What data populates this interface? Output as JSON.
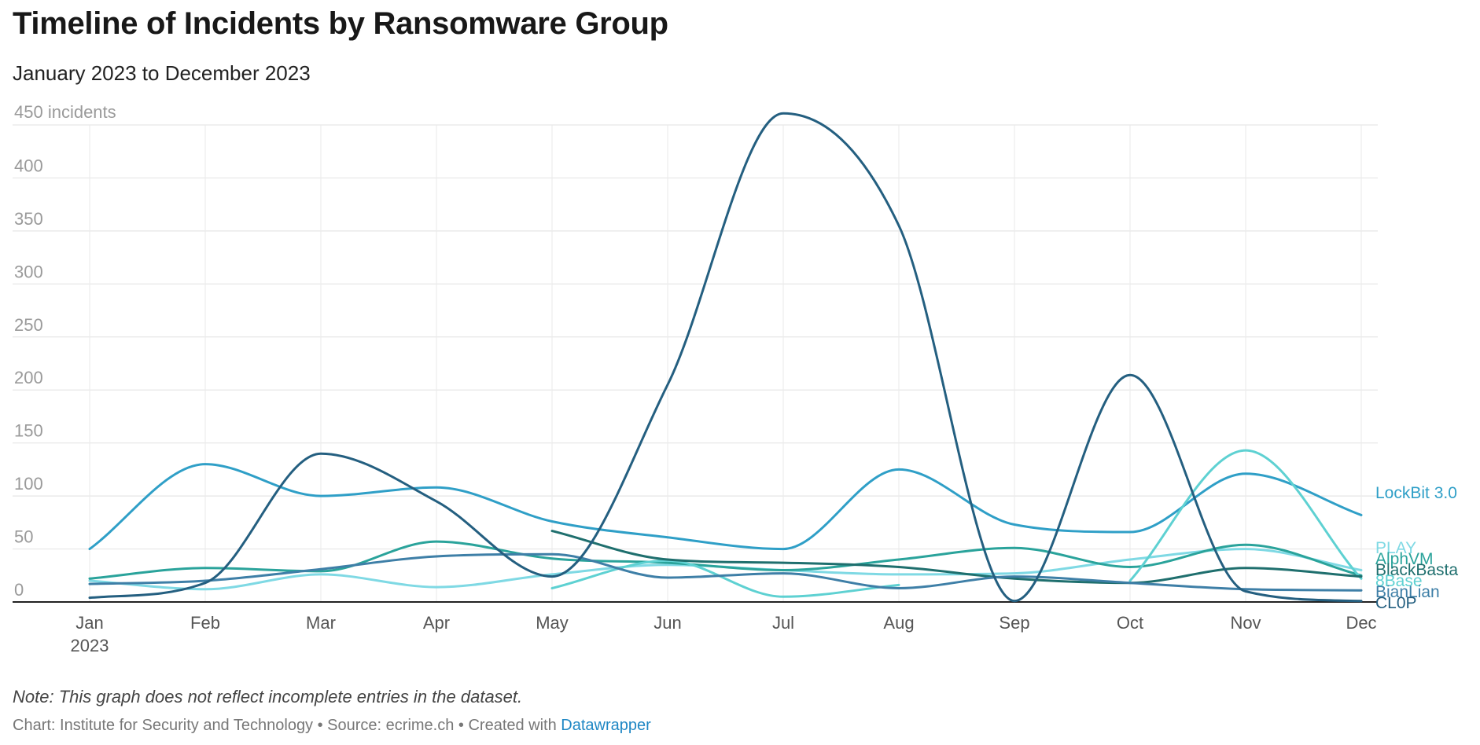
{
  "chart_data": {
    "type": "line",
    "title": "Timeline of Incidents by Ransomware Group",
    "subtitle": "January 2023 to December 2023",
    "x": [
      "Jan",
      "Feb",
      "Mar",
      "Apr",
      "May",
      "Jun",
      "Jul",
      "Aug",
      "Sep",
      "Oct",
      "Nov",
      "Dec"
    ],
    "x_year_label": "2023",
    "y_unit_label": "450 incidents",
    "yticks": [
      0,
      50,
      100,
      150,
      200,
      250,
      300,
      350,
      400
    ],
    "ylim": [
      0,
      450
    ],
    "grid": true,
    "legend": "direct labels at right end of lines",
    "series": [
      {
        "name": "LockBit 3.0",
        "color": "#2f9fc7",
        "values": [
          50,
          130,
          100,
          108,
          76,
          61,
          50,
          125,
          73,
          66,
          121,
          82
        ]
      },
      {
        "name": "PLAY",
        "color": "#7fd9e4",
        "values": [
          20,
          12,
          26,
          14,
          26,
          35,
          30,
          26,
          27,
          40,
          50,
          30
        ]
      },
      {
        "name": "AlphVM",
        "color": "#2aa39b",
        "values": [
          22,
          32,
          29,
          57,
          41,
          37,
          30,
          40,
          51,
          33,
          54,
          25
        ]
      },
      {
        "name": "8Base",
        "color": "#5ed1d2",
        "values": [
          null,
          null,
          null,
          null,
          13,
          39,
          5,
          16,
          null,
          20,
          143,
          22
        ]
      },
      {
        "name": "BlackBasta",
        "color": "#1f6f6e",
        "values": [
          null,
          null,
          null,
          null,
          67,
          40,
          37,
          33,
          22,
          18,
          32,
          24
        ]
      },
      {
        "name": "BianLian",
        "color": "#3e7fa7",
        "values": [
          17,
          20,
          31,
          43,
          45,
          23,
          27,
          13,
          24,
          18,
          12,
          11
        ]
      },
      {
        "name": "CL0P",
        "color": "#245f80",
        "values": [
          4,
          18,
          140,
          95,
          24,
          205,
          461,
          355,
          1,
          214,
          10,
          1
        ]
      }
    ]
  },
  "note": "Note: This graph does not reflect incomplete entries in the dataset.",
  "footer": {
    "prefix": "Chart: Institute for Security and Technology • Source: ecrime.ch • Created with ",
    "link": "Datawrapper"
  }
}
